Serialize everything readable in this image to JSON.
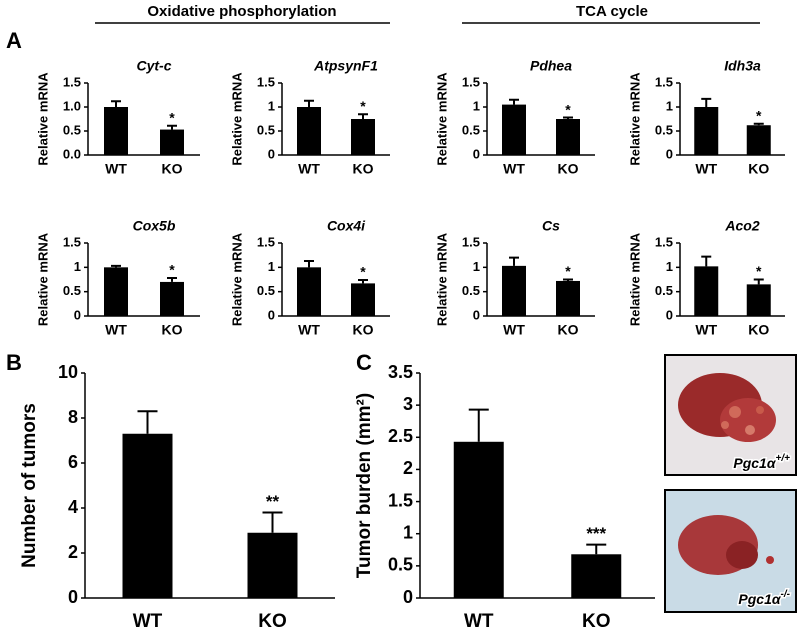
{
  "figure": {
    "group_headers": [
      "Oxidative phosphorylation",
      "TCA cycle"
    ],
    "panel_labels": [
      "A",
      "B",
      "C"
    ],
    "photo_labels": [
      {
        "text": "Pgc1α",
        "superscript": "+/+"
      },
      {
        "text": "Pgc1α",
        "superscript": "-/-"
      }
    ]
  },
  "chart_data": [
    {
      "type": "bar",
      "title": "Cyt-c",
      "y_label": "Relative mRNA",
      "categories": [
        "WT",
        "KO"
      ],
      "values": [
        1.0,
        0.53
      ],
      "errors": [
        0.12,
        0.08
      ],
      "color": "#000000",
      "ylim": [
        0,
        1.5
      ],
      "yticks": [
        {
          "value": 0,
          "label": "0.0"
        },
        {
          "value": 0.5,
          "label": "0.5"
        },
        {
          "value": 1,
          "label": "1.0"
        },
        {
          "value": 1.5,
          "label": "1.5"
        }
      ],
      "annotations": [
        {
          "category": "KO",
          "text": "*"
        }
      ]
    },
    {
      "type": "bar",
      "title": "AtpsynF1",
      "y_label": "Relative mRNA",
      "categories": [
        "WT",
        "KO"
      ],
      "values": [
        1.0,
        0.75
      ],
      "errors": [
        0.13,
        0.1
      ],
      "color": "#000000",
      "ylim": [
        0,
        1.5
      ],
      "yticks": [
        0,
        0.5,
        1,
        1.5
      ],
      "annotations": [
        {
          "category": "KO",
          "text": "*"
        }
      ]
    },
    {
      "type": "bar",
      "title": "Pdhea",
      "y_label": "Relative mRNA",
      "categories": [
        "WT",
        "KO"
      ],
      "values": [
        1.05,
        0.75
      ],
      "errors": [
        0.1,
        0.03
      ],
      "color": "#000000",
      "ylim": [
        0,
        1.5
      ],
      "yticks": [
        0,
        0.5,
        1,
        1.5
      ],
      "annotations": [
        {
          "category": "KO",
          "text": "*"
        }
      ]
    },
    {
      "type": "bar",
      "title": "Idh3a",
      "y_label": "Relative mRNA",
      "categories": [
        "WT",
        "KO"
      ],
      "values": [
        1.0,
        0.62
      ],
      "errors": [
        0.17,
        0.03
      ],
      "color": "#000000",
      "ylim": [
        0,
        1.5
      ],
      "yticks": [
        0,
        0.5,
        1,
        1.5
      ],
      "annotations": [
        {
          "category": "KO",
          "text": "*"
        }
      ]
    },
    {
      "type": "bar",
      "title": "Cox5b",
      "y_label": "Relative mRNA",
      "categories": [
        "WT",
        "KO"
      ],
      "values": [
        1.0,
        0.7
      ],
      "errors": [
        0.03,
        0.08
      ],
      "color": "#000000",
      "ylim": [
        0,
        1.5
      ],
      "yticks": [
        0,
        0.5,
        1,
        1.5
      ],
      "annotations": [
        {
          "category": "KO",
          "text": "*"
        }
      ]
    },
    {
      "type": "bar",
      "title": "Cox4i",
      "y_label": "Relative mRNA",
      "categories": [
        "WT",
        "KO"
      ],
      "values": [
        1.0,
        0.67
      ],
      "errors": [
        0.13,
        0.07
      ],
      "color": "#000000",
      "ylim": [
        0,
        1.5
      ],
      "yticks": [
        0,
        0.5,
        1,
        1.5
      ],
      "annotations": [
        {
          "category": "KO",
          "text": "*"
        }
      ]
    },
    {
      "type": "bar",
      "title": "Cs",
      "y_label": "Relative mRNA",
      "categories": [
        "WT",
        "KO"
      ],
      "values": [
        1.03,
        0.72
      ],
      "errors": [
        0.17,
        0.03
      ],
      "color": "#000000",
      "ylim": [
        0,
        1.5
      ],
      "yticks": [
        0,
        0.5,
        1,
        1.5
      ],
      "annotations": [
        {
          "category": "KO",
          "text": "*"
        }
      ]
    },
    {
      "type": "bar",
      "title": "Aco2",
      "y_label": "Relative mRNA",
      "categories": [
        "WT",
        "KO"
      ],
      "values": [
        1.02,
        0.65
      ],
      "errors": [
        0.2,
        0.1
      ],
      "color": "#000000",
      "ylim": [
        0,
        1.5
      ],
      "yticks": [
        0,
        0.5,
        1,
        1.5
      ],
      "annotations": [
        {
          "category": "KO",
          "text": "*"
        }
      ]
    },
    {
      "type": "bar",
      "y_label": "Number of tumors",
      "categories": [
        "WT",
        "KO"
      ],
      "values": [
        7.3,
        2.9
      ],
      "errors": [
        1.0,
        0.9
      ],
      "color": "#000000",
      "ylim": [
        0,
        10
      ],
      "yticks": [
        0,
        2,
        4,
        6,
        8,
        10
      ],
      "annotations": [
        {
          "category": "KO",
          "text": "**"
        }
      ]
    },
    {
      "type": "bar",
      "y_label": "Tumor burden (mm²)",
      "categories": [
        "WT",
        "KO"
      ],
      "values": [
        2.43,
        0.68
      ],
      "errors": [
        0.5,
        0.15
      ],
      "color": "#000000",
      "ylim": [
        0,
        3.5
      ],
      "yticks": [
        0,
        0.5,
        1,
        1.5,
        2,
        2.5,
        3,
        3.5
      ],
      "annotations": [
        {
          "category": "KO",
          "text": "***"
        }
      ]
    }
  ]
}
